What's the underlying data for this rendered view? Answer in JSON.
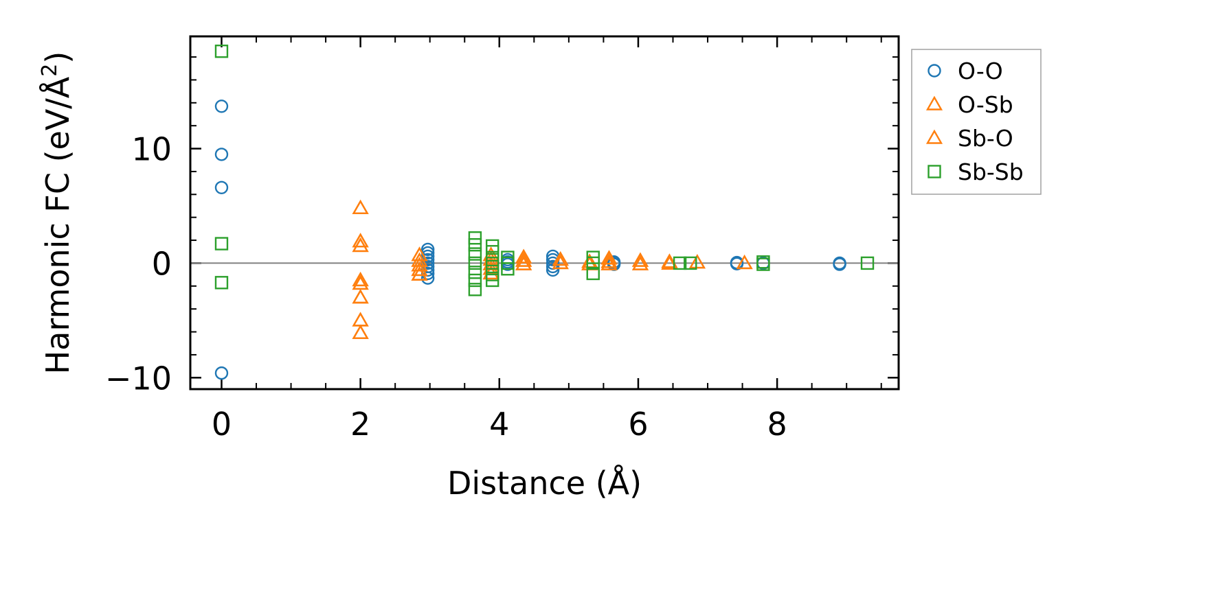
{
  "chart_data": {
    "type": "scatter",
    "title": "",
    "xlabel": "Distance (Å)",
    "ylabel_main": "Harmonic FC (eV/Å",
    "ylabel_sup": "2",
    "ylabel_tail": ")",
    "xlim": [
      -0.45,
      9.75
    ],
    "ylim": [
      -11.0,
      19.8
    ],
    "xticks": [
      0,
      2,
      4,
      6,
      8
    ],
    "xtick_labels": [
      "0",
      "2",
      "4",
      "6",
      "8"
    ],
    "yticks": [
      -10,
      0,
      10
    ],
    "ytick_labels": [
      "−10",
      "0",
      "10"
    ],
    "x_minor_step": 0.5,
    "y_minor_step": 2,
    "grid": false,
    "zero_line": true,
    "legend_position": "outside-right-top",
    "series": [
      {
        "name": "O-O",
        "color": "#1f77b4",
        "marker": "circle",
        "points": [
          [
            0,
            13.7
          ],
          [
            0,
            9.5
          ],
          [
            0,
            6.6
          ],
          [
            0,
            -9.6
          ],
          [
            2.97,
            1.2
          ],
          [
            2.97,
            0.9
          ],
          [
            2.97,
            0.6
          ],
          [
            2.97,
            0.3
          ],
          [
            2.97,
            0.0
          ],
          [
            2.97,
            -0.3
          ],
          [
            2.97,
            -0.6
          ],
          [
            2.97,
            -0.9
          ],
          [
            2.97,
            -1.3
          ],
          [
            4.12,
            0.3
          ],
          [
            4.12,
            0.1
          ],
          [
            4.12,
            -0.1
          ],
          [
            4.77,
            0.6
          ],
          [
            4.77,
            0.3
          ],
          [
            4.77,
            0.0
          ],
          [
            4.77,
            -0.3
          ],
          [
            4.77,
            -0.6
          ],
          [
            5.65,
            0.1
          ],
          [
            5.65,
            0.0
          ],
          [
            5.65,
            -0.1
          ],
          [
            7.42,
            0.05
          ],
          [
            7.42,
            -0.05
          ],
          [
            7.8,
            0.0
          ],
          [
            8.9,
            0.0
          ],
          [
            8.9,
            -0.1
          ]
        ]
      },
      {
        "name": "O-Sb",
        "color": "#ff7f0e",
        "marker": "triangle",
        "points": [
          [
            2.0,
            4.8
          ],
          [
            2.0,
            1.9
          ],
          [
            2.0,
            1.5
          ],
          [
            2.0,
            -1.5
          ],
          [
            2.0,
            -1.8
          ],
          [
            2.0,
            -3.0
          ],
          [
            2.0,
            -5.0
          ],
          [
            2.0,
            -6.1
          ],
          [
            2.85,
            0.7
          ],
          [
            2.85,
            0.2
          ],
          [
            2.85,
            -0.2
          ],
          [
            2.85,
            -0.6
          ],
          [
            2.85,
            -1.0
          ],
          [
            3.88,
            0.7
          ],
          [
            3.88,
            0.3
          ],
          [
            3.88,
            -0.1
          ],
          [
            3.88,
            -0.5
          ],
          [
            3.88,
            -0.9
          ],
          [
            4.35,
            0.5
          ],
          [
            4.35,
            0.2
          ],
          [
            4.35,
            -0.1
          ],
          [
            4.88,
            0.3
          ],
          [
            4.88,
            0.0
          ],
          [
            5.3,
            0.1
          ],
          [
            5.3,
            -0.1
          ],
          [
            5.58,
            0.4
          ],
          [
            5.58,
            0.1
          ],
          [
            5.58,
            -0.1
          ],
          [
            6.03,
            0.2
          ],
          [
            6.03,
            -0.1
          ],
          [
            6.45,
            0.1
          ],
          [
            6.45,
            -0.05
          ],
          [
            6.85,
            0.05
          ],
          [
            7.53,
            0.0
          ]
        ]
      },
      {
        "name": "Sb-O",
        "color": "#ff7f0e",
        "marker": "triangle",
        "points": [
          [
            2.0,
            4.8
          ],
          [
            2.0,
            1.9
          ],
          [
            2.0,
            1.5
          ],
          [
            2.0,
            -1.5
          ],
          [
            2.0,
            -1.8
          ],
          [
            2.0,
            -3.0
          ],
          [
            2.0,
            -5.0
          ],
          [
            2.0,
            -6.1
          ],
          [
            2.85,
            0.7
          ],
          [
            2.85,
            0.2
          ],
          [
            2.85,
            -0.2
          ],
          [
            2.85,
            -0.6
          ],
          [
            2.85,
            -1.0
          ],
          [
            3.88,
            0.7
          ],
          [
            3.88,
            0.3
          ],
          [
            3.88,
            -0.1
          ],
          [
            3.88,
            -0.5
          ],
          [
            3.88,
            -0.9
          ],
          [
            4.35,
            0.5
          ],
          [
            4.35,
            0.2
          ],
          [
            4.35,
            -0.1
          ],
          [
            4.88,
            0.3
          ],
          [
            4.88,
            0.0
          ],
          [
            5.3,
            0.1
          ],
          [
            5.3,
            -0.1
          ],
          [
            5.58,
            0.4
          ],
          [
            5.58,
            0.1
          ],
          [
            5.58,
            -0.1
          ],
          [
            6.03,
            0.2
          ],
          [
            6.03,
            -0.1
          ],
          [
            6.45,
            0.1
          ],
          [
            6.45,
            -0.05
          ],
          [
            6.85,
            0.05
          ],
          [
            7.53,
            0.0
          ]
        ]
      },
      {
        "name": "Sb-Sb",
        "color": "#2ca02c",
        "marker": "square",
        "points": [
          [
            0,
            18.5
          ],
          [
            0,
            1.7
          ],
          [
            0,
            -1.7
          ],
          [
            3.65,
            2.2
          ],
          [
            3.65,
            1.6
          ],
          [
            3.65,
            0.8
          ],
          [
            3.65,
            0.0
          ],
          [
            3.65,
            -0.8
          ],
          [
            3.65,
            -1.5
          ],
          [
            3.65,
            -2.3
          ],
          [
            3.9,
            1.5
          ],
          [
            3.9,
            1.0
          ],
          [
            3.9,
            0.3
          ],
          [
            3.9,
            -0.3
          ],
          [
            3.9,
            -1.0
          ],
          [
            3.9,
            -1.5
          ],
          [
            4.12,
            0.5
          ],
          [
            4.12,
            0.0
          ],
          [
            4.12,
            -0.5
          ],
          [
            5.35,
            0.5
          ],
          [
            5.35,
            0.0
          ],
          [
            5.35,
            -0.9
          ],
          [
            6.6,
            0.0
          ],
          [
            6.75,
            0.0
          ],
          [
            7.8,
            0.1
          ],
          [
            7.8,
            -0.1
          ],
          [
            9.3,
            0.0
          ]
        ]
      }
    ]
  }
}
